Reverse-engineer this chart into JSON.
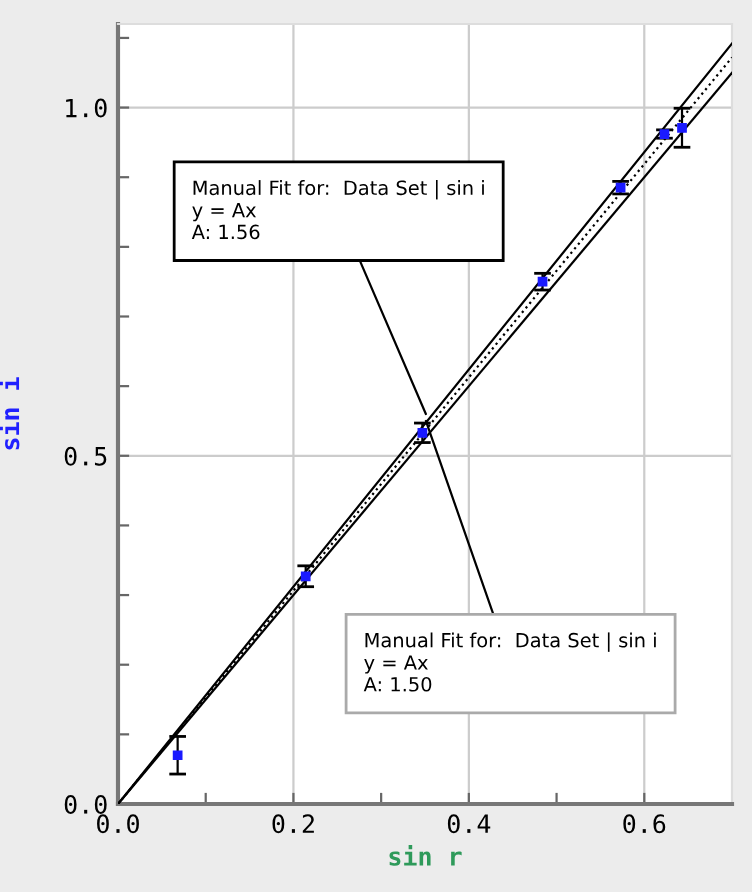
{
  "chart_data": {
    "type": "scatter",
    "xlabel": "sin r",
    "ylabel": "sin i",
    "xlim": [
      0,
      0.7
    ],
    "ylim": [
      0,
      1.12
    ],
    "xticks": [
      {
        "value": 0.0,
        "label": "0.0"
      },
      {
        "value": 0.1,
        "label": null
      },
      {
        "value": 0.2,
        "label": "0.2"
      },
      {
        "value": 0.3,
        "label": null
      },
      {
        "value": 0.4,
        "label": "0.4"
      },
      {
        "value": 0.5,
        "label": null
      },
      {
        "value": 0.6,
        "label": "0.6"
      }
    ],
    "yticks": [
      {
        "value": 0.0,
        "label": "0.0"
      },
      {
        "value": 0.1,
        "label": null
      },
      {
        "value": 0.2,
        "label": null
      },
      {
        "value": 0.3,
        "label": null
      },
      {
        "value": 0.4,
        "label": null
      },
      {
        "value": 0.5,
        "label": "0.5"
      },
      {
        "value": 0.6,
        "label": null
      },
      {
        "value": 0.7,
        "label": null
      },
      {
        "value": 0.8,
        "label": null
      },
      {
        "value": 0.9,
        "label": null
      },
      {
        "value": 1.0,
        "label": "1.0"
      },
      {
        "value": 1.1,
        "label": null
      }
    ],
    "grid": true,
    "series": [
      {
        "marker": "square",
        "color": "#1a1aff",
        "x": [
          0.068,
          0.214,
          0.347,
          0.484,
          0.573,
          0.623,
          0.643
        ],
        "values": [
          0.07,
          0.327,
          0.533,
          0.75,
          0.885,
          0.962,
          0.971
        ],
        "errors": [
          0.027,
          0.015,
          0.014,
          0.012,
          0.009,
          0.006,
          0.028
        ]
      },
      {
        "type": "line",
        "color": "#000000",
        "line_style": "solid",
        "x": [
          0,
          0.7
        ],
        "values": [
          0,
          1.092
        ]
      },
      {
        "type": "line",
        "color": "#000000",
        "line_style": "dotted",
        "x": [
          0,
          0.7
        ],
        "values": [
          0,
          1.072
        ]
      },
      {
        "type": "line",
        "color": "#000000",
        "line_style": "solid",
        "x": [
          0,
          0.7
        ],
        "values": [
          0,
          1.05
        ]
      }
    ],
    "annotations": [
      {
        "text": "Manual Fit for:  Data Set | sin i\ny = Ax\nA: 1.56",
        "x": 0.351,
        "y": 0.56
      },
      {
        "text": "Manual Fit for:  Data Set | sin i\ny = Ax\nA: 1.50",
        "x": 0.351,
        "y": 0.55
      }
    ]
  }
}
